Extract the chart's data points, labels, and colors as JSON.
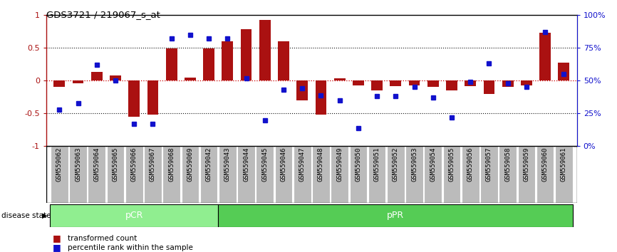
{
  "title": "GDS3721 / 219067_s_at",
  "samples": [
    "GSM559062",
    "GSM559063",
    "GSM559064",
    "GSM559065",
    "GSM559066",
    "GSM559067",
    "GSM559068",
    "GSM559069",
    "GSM559042",
    "GSM559043",
    "GSM559044",
    "GSM559045",
    "GSM559046",
    "GSM559047",
    "GSM559048",
    "GSM559049",
    "GSM559050",
    "GSM559051",
    "GSM559052",
    "GSM559053",
    "GSM559054",
    "GSM559055",
    "GSM559056",
    "GSM559057",
    "GSM559058",
    "GSM559059",
    "GSM559060",
    "GSM559061"
  ],
  "transformed_count": [
    -0.1,
    -0.04,
    0.13,
    0.08,
    -0.55,
    -0.52,
    0.49,
    0.05,
    0.49,
    0.6,
    0.78,
    0.93,
    0.6,
    -0.3,
    -0.52,
    0.04,
    -0.07,
    -0.15,
    -0.08,
    -0.07,
    -0.1,
    -0.15,
    -0.08,
    -0.2,
    -0.1,
    -0.07,
    0.73,
    0.27
  ],
  "percentile_rank": [
    28,
    33,
    62,
    50,
    17,
    17,
    82,
    85,
    82,
    82,
    52,
    20,
    43,
    44,
    39,
    35,
    14,
    38,
    38,
    45,
    37,
    22,
    49,
    63,
    48,
    45,
    87,
    55
  ],
  "n_pCR": 9,
  "n_total": 28,
  "bar_color": "#AA1111",
  "dot_color": "#1111CC",
  "pCR_color": "#90EE90",
  "pPR_color": "#55CC55",
  "bg_label_color": "#BBBBBB",
  "ylim_left": [
    -1.0,
    1.0
  ],
  "ylim_right": [
    0,
    100
  ],
  "hline0_color": "#CC0000",
  "hline_dotted_color": "#111111",
  "pCR_text": "pCR",
  "pPR_text": "pPR",
  "ds_label": "disease state",
  "legend1": "transformed count",
  "legend2": "percentile rank within the sample"
}
